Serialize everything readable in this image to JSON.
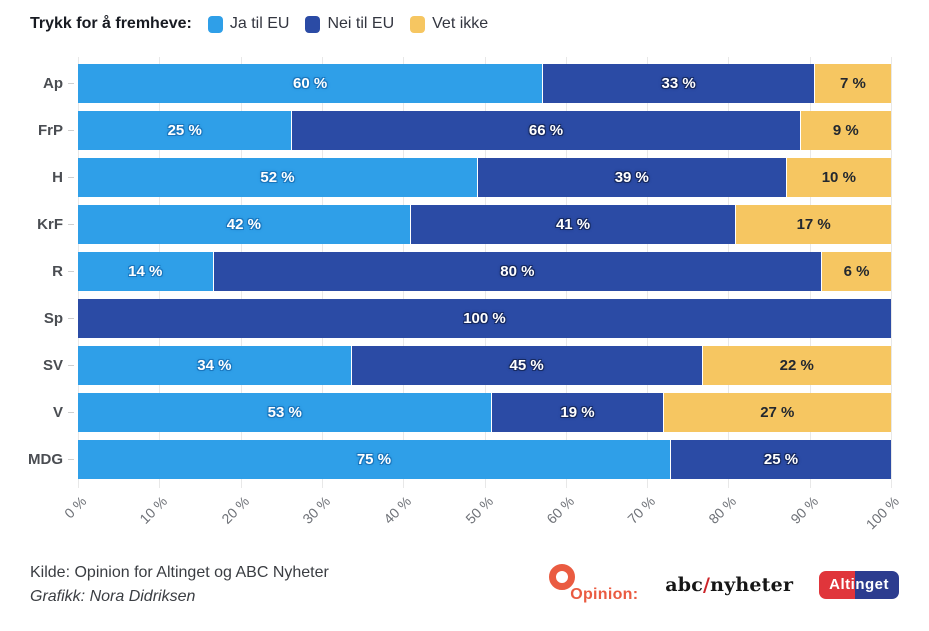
{
  "legend": {
    "title": "Trykk for å fremheve:",
    "items": [
      {
        "label": "Ja til EU",
        "color": "#2F9FE8"
      },
      {
        "label": "Nei til EU",
        "color": "#2B4BA5"
      },
      {
        "label": "Vet ikke",
        "color": "#F6C661"
      }
    ]
  },
  "chart_data": {
    "type": "bar",
    "orientation": "horizontal",
    "stacked": true,
    "categories": [
      "Ap",
      "FrP",
      "H",
      "KrF",
      "R",
      "Sp",
      "SV",
      "V",
      "MDG"
    ],
    "series": [
      {
        "name": "Ja til EU",
        "color": "#2F9FE8",
        "values": [
          60,
          25,
          52,
          42,
          14,
          0,
          34,
          53,
          75
        ]
      },
      {
        "name": "Nei til EU",
        "color": "#2B4BA5",
        "values": [
          33,
          66,
          39,
          41,
          80,
          100,
          45,
          19,
          25
        ]
      },
      {
        "name": "Vet ikke",
        "color": "#F6C661",
        "values": [
          7,
          9,
          10,
          17,
          6,
          0,
          22,
          27,
          0
        ]
      }
    ],
    "value_suffix": " %",
    "x_ticks": [
      "0 %",
      "10 %",
      "20 %",
      "30 %",
      "40 %",
      "50 %",
      "60 %",
      "70 %",
      "80 %",
      "90 %",
      "100 %"
    ],
    "xlim": [
      0,
      100
    ],
    "grid": true,
    "legend_position": "top"
  },
  "footer": {
    "source": "Kilde: Opinion for Altinget og ABC Nyheter",
    "credit": "Grafikk: Nora Didriksen",
    "logos": {
      "opinion": {
        "text": "Opinion:",
        "color": "#EA5B41"
      },
      "abc_nyheter": {
        "part1": "abc",
        "slash": "/",
        "part2": "nyheter",
        "slash_color": "#CC2429"
      },
      "altinget": {
        "text": "Altinget",
        "red": "#E0353B",
        "blue": "#2C3C8F"
      }
    }
  }
}
